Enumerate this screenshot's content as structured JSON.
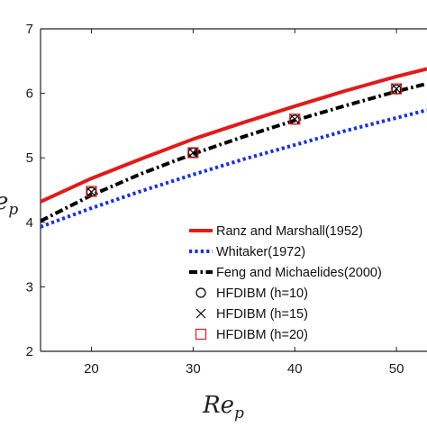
{
  "chart_data": {
    "type": "line",
    "xlabel": "Re_p",
    "ylabel": "Nu_p",
    "xlim": [
      15,
      53
    ],
    "ylim": [
      2,
      7
    ],
    "x_ticks": [
      20,
      30,
      40,
      50
    ],
    "y_ticks": [
      2,
      3,
      4,
      5,
      6,
      7
    ],
    "grid": false,
    "legend_position": "bottom-right",
    "series": [
      {
        "name": "Ranz and Marshall(1952)",
        "style": "solid",
        "color": "#e01b1b",
        "x": [
          15,
          20,
          25,
          30,
          35,
          40,
          45,
          50,
          53
        ],
        "y": [
          4.32,
          4.68,
          4.99,
          5.29,
          5.55,
          5.8,
          6.04,
          6.26,
          6.38
        ]
      },
      {
        "name": "Whitaker(1972)",
        "style": "dotted",
        "color": "#1a33d6",
        "x": [
          15,
          20,
          25,
          30,
          35,
          40,
          45,
          50,
          53
        ],
        "y": [
          3.93,
          4.22,
          4.49,
          4.74,
          4.98,
          5.2,
          5.42,
          5.62,
          5.74
        ]
      },
      {
        "name": "Feng and Michaelides(2000)",
        "style": "dashdot",
        "color": "#000000",
        "x": [
          15,
          20,
          25,
          30,
          35,
          40,
          45,
          50,
          53
        ],
        "y": [
          4.02,
          4.42,
          4.76,
          5.06,
          5.33,
          5.58,
          5.81,
          6.03,
          6.15
        ]
      },
      {
        "name": "HFDIBM (h=10)",
        "marker": "circle",
        "color": "#000000",
        "x": [
          20,
          30,
          40,
          50
        ],
        "y": [
          4.47,
          5.08,
          5.59,
          6.06
        ]
      },
      {
        "name": "HFDIBM (h=15)",
        "marker": "x",
        "color": "#000000",
        "x": [
          20,
          30,
          40,
          50
        ],
        "y": [
          4.47,
          5.08,
          5.6,
          6.07
        ]
      },
      {
        "name": "HFDIBM (h=20)",
        "marker": "square",
        "color": "#e01b1b",
        "x": [
          20,
          30,
          40,
          50
        ],
        "y": [
          4.48,
          5.08,
          5.6,
          6.07
        ]
      }
    ]
  }
}
